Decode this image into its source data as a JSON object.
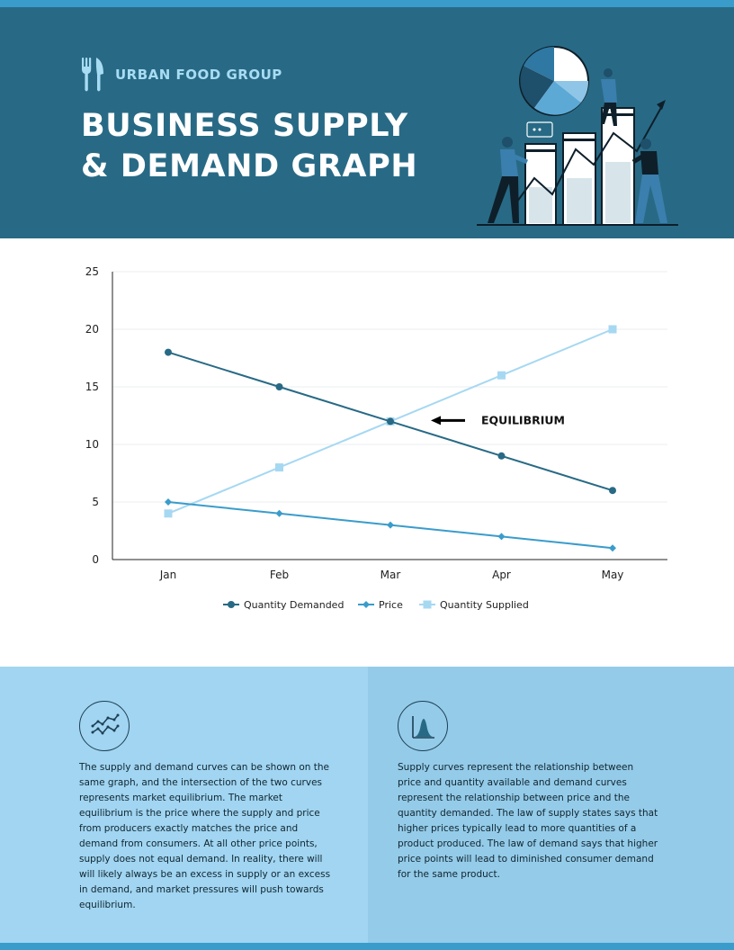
{
  "header": {
    "brand": "URBAN FOOD GROUP",
    "title_line1": "BUSINESS SUPPLY",
    "title_line2": "& DEMAND GRAPH"
  },
  "colors": {
    "header_bg": "#286a85",
    "accent": "#3a9ccb",
    "demand": "#286a85",
    "price": "#3a9ccb",
    "supplied": "#a6d8f2"
  },
  "icons": {
    "brand": "fork-knife-icon",
    "left_panel": "trend-lines-icon",
    "right_panel": "bell-curve-icon"
  },
  "chart_data": {
    "type": "line",
    "categories": [
      "Jan",
      "Feb",
      "Mar",
      "Apr",
      "May"
    ],
    "series": [
      {
        "name": "Quantity Demanded",
        "values": [
          18,
          15,
          12,
          9,
          6
        ],
        "color": "#286a85",
        "marker": "circle"
      },
      {
        "name": "Price",
        "values": [
          5,
          4,
          3,
          2,
          1
        ],
        "color": "#3a9ccb",
        "marker": "diamond"
      },
      {
        "name": "Quantity Supplied",
        "values": [
          4,
          8,
          12,
          16,
          20
        ],
        "color": "#a6d8f2",
        "marker": "square"
      }
    ],
    "yticks": [
      0,
      5,
      10,
      15,
      20,
      25
    ],
    "ylim": [
      0,
      25
    ],
    "grid": true,
    "legend": "bottom",
    "annotation": {
      "text": "EQUILIBRIUM",
      "category": "Mar",
      "value": 12
    }
  },
  "panels": {
    "left_text": "The supply and demand curves can be shown on the same graph, and the intersection of the two curves represents market equilibrium. The market equilibrium is the price where the supply and price from producers exactly matches the price and demand from consumers. At all other price points, supply does not equal demand. In reality, there will will likely always be an excess in supply or an excess in demand, and market pressures will push towards equilibrium.",
    "right_text": "Supply curves represent the relationship between price and quantity available and demand curves represent the relationship between price and the quantity demanded. The law of supply states says that higher prices typically lead to more quantities of a product produced. The law of demand says that higher price points will lead to diminished consumer demand for the same product."
  }
}
